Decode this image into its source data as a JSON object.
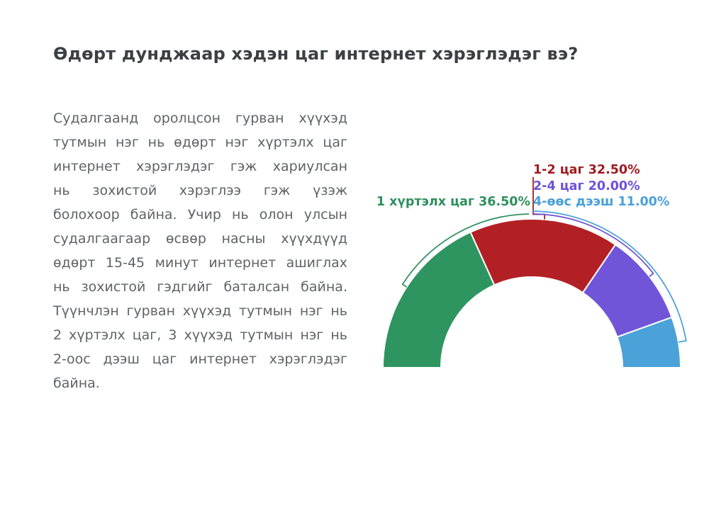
{
  "title": "Өдөрт дунджаар хэдэн цаг интернет хэрэглэдэг вэ?",
  "paragraph": {
    "lines": [
      "Судалгаанд оролцсон гурван хүүхэд",
      "тутмын нэг нь өдөрт нэг хүртэлх цаг",
      "интернет хэрэглэдэг гэж хариулсан",
      "нь зохистой хэрэглээ гэж үзэж",
      "болохоор байна. Учир нь олон улсын",
      "судалгаагаар өсвөр насны хүүхдүүд",
      "өдөрт 15-45 минут интернет ашиглах",
      "нь зохистой гэдгийг баталсан байна.",
      "Түүнчлэн гурван хүүхэд тутмын нэг нь",
      "2 хүртэлх цаг, 3 хүүхэд тутмын нэг нь",
      "2-оос дээш цаг интернет хэрэглэдэг",
      "байна."
    ]
  },
  "chart_data": {
    "type": "pie",
    "subtype": "half-donut",
    "title": "",
    "legend_position": "callout-labels",
    "start_angle_deg": 180,
    "end_angle_deg": 0,
    "inner_radius_ratio": 0.61,
    "unit": "%",
    "total": 100,
    "segments": [
      {
        "label": "1 хүртэлх цаг",
        "value": 36.5,
        "value_display": "36.50%",
        "color": "#2e9560",
        "label_color": "#2e8f5e"
      },
      {
        "label": "1-2 цаг",
        "value": 32.5,
        "value_display": "32.50%",
        "color": "#b22025",
        "label_color": "#9e1b1f"
      },
      {
        "label": "2-4 цаг",
        "value": 20.0,
        "value_display": "20.00%",
        "color": "#7055d8",
        "label_color": "#6f50d8"
      },
      {
        "label": "4-өөс дээш",
        "value": 11.0,
        "value_display": "11.00%",
        "color": "#4aa2d9",
        "label_color": "#4aa0d8"
      }
    ]
  },
  "colors": {
    "background": "#ffffff",
    "title_text": "#3c4043",
    "body_text": "#5f6368",
    "slice_gap": "#ffffff"
  }
}
